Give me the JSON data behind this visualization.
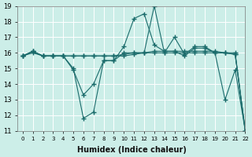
{
  "xlabel": "Humidex (Indice chaleur)",
  "bg_color": "#cceee8",
  "line_color": "#1a6b6b",
  "grid_color": "#ffffff",
  "ymin": 11,
  "ymax": 19,
  "lines": [
    [
      15.8,
      16.1,
      15.8,
      15.8,
      15.8,
      15.0,
      11.8,
      12.2,
      15.5,
      15.5,
      16.4,
      18.2,
      18.5,
      16.5,
      16.1,
      16.1,
      15.8,
      16.3,
      16.3,
      16.0,
      13.0,
      14.9,
      11.0
    ],
    [
      15.8,
      16.1,
      15.8,
      15.8,
      15.8,
      14.9,
      13.3,
      14.0,
      15.5,
      15.5,
      16.0,
      16.0,
      16.0,
      19.0,
      16.0,
      17.0,
      15.9,
      16.4,
      16.4,
      16.0,
      16.0,
      16.0,
      11.0
    ],
    [
      15.8,
      16.1,
      15.8,
      15.8,
      15.8,
      15.8,
      15.8,
      15.8,
      15.8,
      15.8,
      15.8,
      15.9,
      16.0,
      16.1,
      16.1,
      16.1,
      16.1,
      16.1,
      16.1,
      16.1,
      16.0,
      15.9,
      11.0
    ],
    [
      15.8,
      16.0,
      15.8,
      15.8,
      15.8,
      15.8,
      15.8,
      15.8,
      15.8,
      15.8,
      15.9,
      16.0,
      16.0,
      16.0,
      16.0,
      16.0,
      16.0,
      16.0,
      16.0,
      16.0,
      16.0,
      15.9,
      11.0
    ]
  ]
}
